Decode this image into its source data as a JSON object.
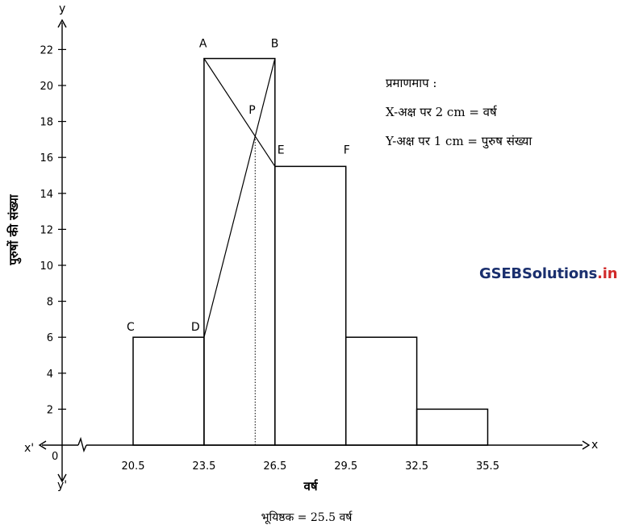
{
  "chart_data": {
    "type": "bar",
    "histogram": true,
    "class_boundaries": [
      20.5,
      23.5,
      26.5,
      29.5,
      32.5,
      35.5
    ],
    "frequencies": [
      6,
      21.5,
      15.5,
      6,
      2
    ],
    "x_tick_labels": [
      "20.5",
      "23.5",
      "26.5",
      "29.5",
      "32.5",
      "35.5"
    ],
    "y_tick_labels": [
      "2",
      "4",
      "6",
      "8",
      "10",
      "12",
      "14",
      "16",
      "18",
      "20",
      "22"
    ],
    "ylim": [
      0,
      22
    ],
    "origin_label": "0",
    "axis_names": {
      "x": "x",
      "x_neg": "x'",
      "y": "y",
      "y_neg": "y'"
    },
    "xlabel": "वर्ष",
    "ylabel": "पुरुषों की संख्या",
    "points": {
      "A": [
        23.5,
        21.5
      ],
      "B": [
        26.5,
        21.5
      ],
      "C": [
        20.5,
        6
      ],
      "D": [
        23.5,
        6
      ],
      "E": [
        26.5,
        15.5
      ],
      "F": [
        29.5,
        15.5
      ],
      "P": [
        25.5,
        17.2
      ]
    },
    "mode_value": 25.5,
    "scale": {
      "title": "प्रमाणमाप :",
      "x_line": "X-अक्ष पर 2 cm = वर्ष",
      "y_line": "Y-अक्ष पर 1 cm  =  पुरुष संख्या"
    },
    "footer": "भूयिष्ठक = 25.5 वर्ष",
    "grid": false
  },
  "watermark": {
    "part1": "GSEB",
    "part2": "Solutions",
    "part3": ".in"
  }
}
